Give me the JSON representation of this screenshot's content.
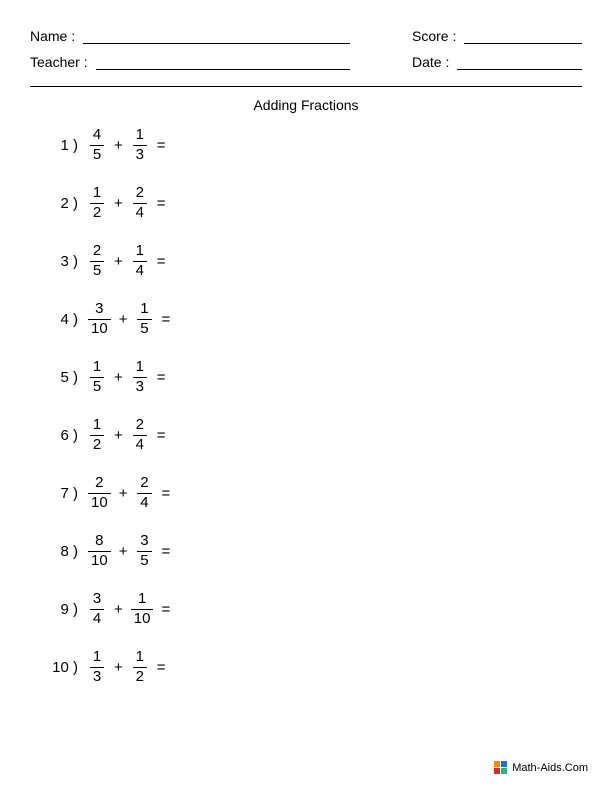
{
  "header": {
    "name_label": "Name :",
    "teacher_label": "Teacher :",
    "score_label": "Score :",
    "date_label": "Date :"
  },
  "title": "Adding Fractions",
  "operator": "+",
  "equals": "=",
  "problems": [
    {
      "n": "1",
      "a_num": "4",
      "a_den": "5",
      "b_num": "1",
      "b_den": "3"
    },
    {
      "n": "2",
      "a_num": "1",
      "a_den": "2",
      "b_num": "2",
      "b_den": "4"
    },
    {
      "n": "3",
      "a_num": "2",
      "a_den": "5",
      "b_num": "1",
      "b_den": "4"
    },
    {
      "n": "4",
      "a_num": "3",
      "a_den": "10",
      "b_num": "1",
      "b_den": "5"
    },
    {
      "n": "5",
      "a_num": "1",
      "a_den": "5",
      "b_num": "1",
      "b_den": "3"
    },
    {
      "n": "6",
      "a_num": "1",
      "a_den": "2",
      "b_num": "2",
      "b_den": "4"
    },
    {
      "n": "7",
      "a_num": "2",
      "a_den": "10",
      "b_num": "2",
      "b_den": "4"
    },
    {
      "n": "8",
      "a_num": "8",
      "a_den": "10",
      "b_num": "3",
      "b_den": "5"
    },
    {
      "n": "9",
      "a_num": "3",
      "a_den": "4",
      "b_num": "1",
      "b_den": "10"
    },
    {
      "n": "10",
      "a_num": "1",
      "a_den": "3",
      "b_num": "1",
      "b_den": "2"
    }
  ],
  "footer": {
    "text": "Math-Aids.Com",
    "logo_colors": [
      "#ff8c00",
      "#1e6fd9",
      "#d92b2b",
      "#2bb673"
    ]
  },
  "colors": {
    "text": "#000000",
    "background": "#ffffff",
    "line": "#000000"
  },
  "typography": {
    "font_family": "Arial",
    "body_size_pt": 11,
    "title_size_pt": 11
  }
}
